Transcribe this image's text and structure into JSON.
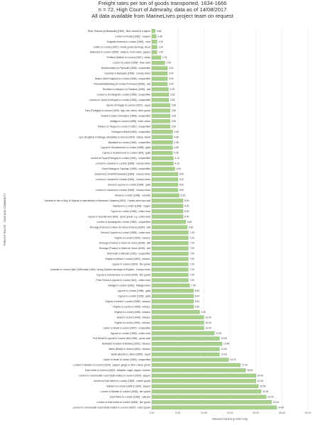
{
  "chart_data": {
    "type": "bar",
    "orientation": "horizontal",
    "title": "Freight rates per ton of goods transported, 1634-1666",
    "subtitle": "n = 72, High Court of Admiralty, data as of 14/08/2017",
    "subtitle2": "All data available from MarineLives project team on request",
    "xlabel": "FREIGHT RATES (£ PER TON)",
    "ylabel": "FREIGHT ROUTE , YEAR AND COMMODITY",
    "xlim": [
      0,
      30
    ],
    "xticks": [
      "0.00",
      "5.00",
      "10.00",
      "15.00",
      "20.00",
      "25.00",
      "30.00"
    ],
    "grid": "vertical",
    "bar_color": "#a9d18e",
    "bar_edge": "#6aa84f",
    "categories": [
      "River Thames (at Blackwall) [1659] - Beer carried in a lighter",
      "London to Rouen [1650] - coppers",
      "Kingsale (Ireland) to London [1651] - wool",
      "Dublin to London [1657] - mixed goods (herrings, linen)",
      "Barbados to London [1655] - tobacco, fresh wines, pepper",
      "Portland (Maine) to London [1657] - wines",
      "London to Lisbon [1654] - linen cloth",
      "Newfoundland to Plymouth [1655] - unspecified",
      "Canaries to Barbados [1656] - Canary wines",
      "Boston (New England) to London [1655] - unspecified",
      "Rochelle/Middelburg (in United Provinces) [1656] - salt",
      "Rochelle to Newport / to Flanders [1656] - salt",
      "London to Archangel/to London [1656] - unspecified",
      "London to Oporto (Portugal) to London [1655] - unspecified",
      "Oporto (Portugal) to London [1657] - sugar",
      "Faro (Portugal) to London [1659] - figs, oils, wines, other goods",
      "Ireland to Saint Christopher [1659] - unspecified",
      "Malaga to London [1658] - fruits, wines",
      "Tobacco to Tsuqua to London [?1651] - unspecified",
      "Portugal to Brazil [1650] - unspecified",
      "Lynn (England) to Malaga, Marseilles to Genoa [1654] - barley, wheat",
      "Barbados to London [1654] - unspecified",
      "Cyprus to Scanderoone to London [1655] - galls",
      "Cyprus & Scanderoone to London [N/A] - galls",
      "London to Fayal (Portugal) to London [1651] - unspecified",
      "London to Canaries to London [1655] - Canary wines",
      "Grand Malaga to Topsham [1655] - unspecified",
      "Zante/Ivica (Teneriffe/Canaries) [1665] - Canary wines",
      "London to Canaries to London [1653] - Canary wines",
      "Genoa & Ligorne to London [1654] - galls",
      "London to Canaries to London [1655] - Canary wines",
      "Morea to London [1656] - currants",
      "Canaries to Isle of May to Virginia or alternatively to Bordeaux Canaries [1654] - Canary wines and salt",
      "Barbados to London [1653] - sugars",
      "Cyprus to London [1656] - cotton wool",
      "Cyprus & Scanderoone [N/A] - gross goods, e.g. cotton wool",
      "London to Archangel/to London [1660] - unspecified",
      "Brouage (France) to Havre de Grace (France) [1654] - salt",
      "Genoa & Ligorne to London [1655] - cotton wool",
      "Virginia to London [1654] - tobacco",
      "Brouage (France) to Havre de Grace [1648] - salt",
      "Brouage (France) to Havre de Grace [1649] - salt",
      "Dartmouth to Alicante [1651] - unspecified",
      "Virginia to Ireland / London [1660] - tobacco",
      "Cyprus to London [1654] - fine goods",
      "Canaries to London (late 1630s/early 1640s, during Spanish embargo of English) - Canary wines",
      "Cyprus & Scanderoone to London [N/A] - fine goods",
      "Porto Farina & Ligorne to London [N/A] - cotton wool",
      "Malaga to London [1666] - Malaga wines",
      "Ligorne to London [1655] - galls",
      "Cyprus to London [1653] - galls",
      "Virginia to Ireland / London [1655] - tobacco",
      "Virginia to London [?1656] - tobacco",
      "Virginia to London [1658] - tobacco",
      "Brazil to Lisbon [1649] - tobacco",
      "Virginia to London [1654] - tobacco",
      "Lisbon to Brazil to Lisbon [1657] - unspecified",
      "Ligorne to London [1653] - cotton wool",
      "Port Wend & Ligorne to London [N/A 1654] - gross wool",
      "Barbados to Island of Barbary [1651] - tobacco",
      "Bahia (Brazil) to Lisbon [1650] - tobacco",
      "Bahia (Brazil) to Lisbon [1650] - sugar",
      "Lisbon to Brazil to Lisbon [1650] - unspecified",
      "London to Bantam to London [1634] - pepper, ginger & other coarse goods",
      "East Indies to London [1662] - saltpeter, sugar, pepper, cowries",
      "London to Coromandel Coast (East Indies) to London [1634] - pepper",
      "London to East Indies to London [1653] - coarse goods",
      "Bantam to London [1658 & 1660] - pepper",
      "London to Bantam to London [1658] - fine goods",
      "East Indies to London [1662] - calicoes",
      "London to East Indies to London [1658] - fine goods",
      "London to Coromandel Coast (East Indies) to London [1660] - calico goods"
    ],
    "values": [
      0.65,
      0.86,
      1.0,
      1.0,
      1.0,
      1.75,
      2.5,
      3.0,
      3.0,
      3.0,
      3.0,
      3.2,
      3.25,
      3.25,
      3.5,
      3.5,
      3.5,
      3.5,
      3.5,
      4.0,
      4.0,
      4.0,
      4.0,
      4.0,
      4.13,
      4.13,
      4.4,
      5.0,
      5.0,
      5.0,
      5.0,
      5.25,
      6.0,
      6.0,
      6.0,
      6.0,
      6.5,
      6.8,
      7.0,
      7.0,
      7.0,
      7.0,
      7.0,
      7.0,
      7.0,
      7.0,
      7.0,
      7.0,
      7.25,
      8.0,
      8.0,
      8.0,
      8.0,
      9.2,
      10.0,
      10.0,
      10.0,
      12.0,
      13.0,
      13.5,
      13.0,
      13.0,
      14.75,
      17.0,
      18.0,
      20.0,
      20.0,
      20.5,
      21.0,
      22.0,
      23.0,
      24.0
    ],
    "labels": [
      "0.65",
      "0.86",
      "1.00",
      "1.00",
      "1.00",
      "1.75",
      "2.50",
      "3.00",
      "3.00",
      "3.00",
      "3.00",
      "3.20",
      "3.25",
      "3.25",
      "3.50",
      "3.50",
      "3.50",
      "3.50",
      "3.50",
      "4.00",
      "4.00",
      "4.00",
      "4.00",
      "4.00",
      "4.13",
      "4.13",
      "4.40",
      "5.00",
      "5.00",
      "5.00",
      "5.00",
      "5.25",
      "6.00",
      "6.00",
      "6.00",
      "6.00",
      "6.50",
      "6.80",
      "7.00",
      "7.00",
      "7.00",
      "7.00",
      "7.00",
      "7.00",
      "7.00",
      "7.00",
      "7.00",
      "7.00",
      "7.25",
      "8.00",
      "8.00",
      "8.00",
      "8.00",
      "9.20",
      "10.00",
      "10.00",
      "10.00",
      "12.00",
      "13.00",
      "13.50",
      "13.00",
      "13.00",
      "14.75",
      "17.00",
      "18.00",
      "20.00",
      "20.00",
      "20.50",
      "21.00",
      "22.00",
      "23.00",
      "24.00"
    ]
  }
}
